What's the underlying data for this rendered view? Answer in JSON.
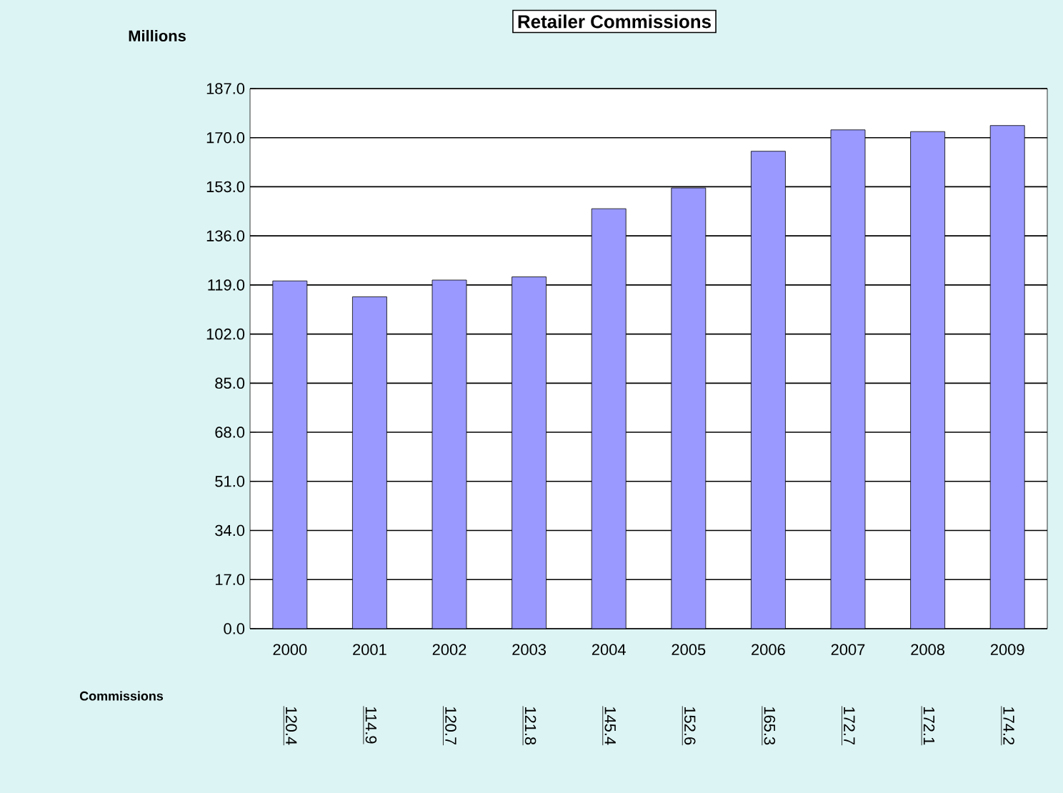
{
  "chart_data": {
    "type": "bar",
    "title": "Retailer Commissions",
    "ylabel": "Millions",
    "categories": [
      "2000",
      "2001",
      "2002",
      "2003",
      "2004",
      "2005",
      "2006",
      "2007",
      "2008",
      "2009"
    ],
    "series": [
      {
        "name": "Commissions",
        "color": "#9999ff",
        "values": [
          120.4,
          114.9,
          120.7,
          121.8,
          145.4,
          152.6,
          165.3,
          172.7,
          172.1,
          174.2
        ]
      }
    ],
    "ylim": [
      0,
      187
    ],
    "yticks": [
      {
        "value": 0,
        "label": "0.0"
      },
      {
        "value": 17,
        "label": "17.0"
      },
      {
        "value": 34,
        "label": "34.0"
      },
      {
        "value": 51,
        "label": "51.0"
      },
      {
        "value": 68,
        "label": "68.0"
      },
      {
        "value": 85,
        "label": "85.0"
      },
      {
        "value": 102,
        "label": "102.0"
      },
      {
        "value": 119,
        "label": "119.0"
      },
      {
        "value": 136,
        "label": "136.0"
      },
      {
        "value": 153,
        "label": "153.0"
      },
      {
        "value": 170,
        "label": "170.0"
      },
      {
        "value": 187,
        "label": "187.0"
      }
    ],
    "grid": "y",
    "data_labels": true
  }
}
